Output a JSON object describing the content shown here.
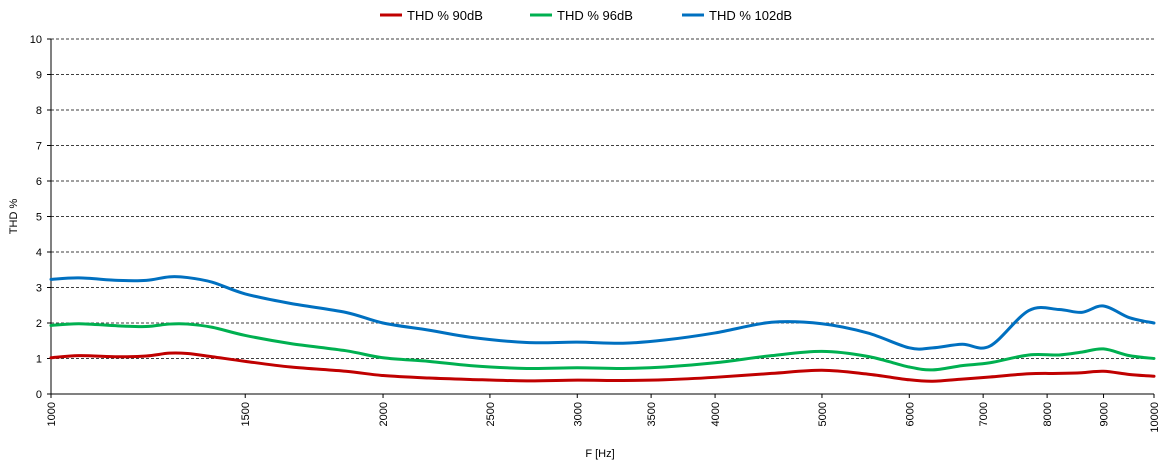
{
  "chart_data": {
    "type": "line",
    "title": "",
    "xlabel": "F [Hz]",
    "ylabel": "THD %",
    "x_scale": "log",
    "xlim": [
      1000,
      10000
    ],
    "ylim": [
      0,
      10
    ],
    "grid": true,
    "legend_position": "top",
    "x_ticks": [
      1000,
      1500,
      2000,
      2500,
      3000,
      3500,
      4000,
      5000,
      6000,
      7000,
      8000,
      9000,
      10000
    ],
    "x_tick_labels": [
      "1000",
      "1500",
      "2000",
      "2500",
      "3000",
      "3500",
      "4000",
      "5000",
      "6000",
      "7000",
      "8000",
      "9000",
      "10000"
    ],
    "y_ticks": [
      0,
      1,
      2,
      3,
      4,
      5,
      6,
      7,
      8,
      9,
      10
    ],
    "y_tick_labels": [
      "0",
      "1",
      "2",
      "3",
      "4",
      "5",
      "6",
      "7",
      "8",
      "9",
      "10"
    ],
    "series": [
      {
        "name": "THD % 90dB",
        "color": "#c00000",
        "points": [
          [
            1000,
            1.02
          ],
          [
            1060,
            1.08
          ],
          [
            1150,
            1.05
          ],
          [
            1220,
            1.07
          ],
          [
            1280,
            1.15
          ],
          [
            1330,
            1.14
          ],
          [
            1400,
            1.05
          ],
          [
            1500,
            0.92
          ],
          [
            1650,
            0.76
          ],
          [
            1850,
            0.64
          ],
          [
            2000,
            0.52
          ],
          [
            2200,
            0.45
          ],
          [
            2400,
            0.41
          ],
          [
            2700,
            0.37
          ],
          [
            3000,
            0.39
          ],
          [
            3300,
            0.38
          ],
          [
            3600,
            0.4
          ],
          [
            4000,
            0.47
          ],
          [
            4500,
            0.58
          ],
          [
            5000,
            0.67
          ],
          [
            5500,
            0.56
          ],
          [
            6000,
            0.4
          ],
          [
            6300,
            0.36
          ],
          [
            6700,
            0.42
          ],
          [
            7100,
            0.48
          ],
          [
            7700,
            0.57
          ],
          [
            8200,
            0.58
          ],
          [
            8600,
            0.6
          ],
          [
            9000,
            0.64
          ],
          [
            9500,
            0.55
          ],
          [
            10000,
            0.5
          ]
        ]
      },
      {
        "name": "THD % 96dB",
        "color": "#00b050",
        "points": [
          [
            1000,
            1.93
          ],
          [
            1060,
            1.98
          ],
          [
            1150,
            1.92
          ],
          [
            1220,
            1.9
          ],
          [
            1280,
            1.97
          ],
          [
            1330,
            1.97
          ],
          [
            1400,
            1.88
          ],
          [
            1500,
            1.65
          ],
          [
            1650,
            1.42
          ],
          [
            1850,
            1.22
          ],
          [
            2000,
            1.02
          ],
          [
            2200,
            0.92
          ],
          [
            2400,
            0.8
          ],
          [
            2700,
            0.72
          ],
          [
            3000,
            0.74
          ],
          [
            3300,
            0.72
          ],
          [
            3600,
            0.76
          ],
          [
            4000,
            0.88
          ],
          [
            4500,
            1.08
          ],
          [
            5000,
            1.2
          ],
          [
            5500,
            1.06
          ],
          [
            6000,
            0.76
          ],
          [
            6300,
            0.68
          ],
          [
            6700,
            0.8
          ],
          [
            7100,
            0.88
          ],
          [
            7700,
            1.1
          ],
          [
            8200,
            1.1
          ],
          [
            8600,
            1.18
          ],
          [
            9000,
            1.27
          ],
          [
            9500,
            1.08
          ],
          [
            10000,
            1.0
          ]
        ]
      },
      {
        "name": "THD % 102dB",
        "color": "#0070c0",
        "points": [
          [
            1000,
            3.23
          ],
          [
            1060,
            3.27
          ],
          [
            1150,
            3.2
          ],
          [
            1220,
            3.2
          ],
          [
            1280,
            3.3
          ],
          [
            1330,
            3.28
          ],
          [
            1400,
            3.15
          ],
          [
            1500,
            2.82
          ],
          [
            1650,
            2.55
          ],
          [
            1850,
            2.3
          ],
          [
            2000,
            2.0
          ],
          [
            2200,
            1.8
          ],
          [
            2400,
            1.6
          ],
          [
            2700,
            1.45
          ],
          [
            3000,
            1.46
          ],
          [
            3300,
            1.43
          ],
          [
            3600,
            1.52
          ],
          [
            4000,
            1.72
          ],
          [
            4500,
            2.02
          ],
          [
            5000,
            1.98
          ],
          [
            5500,
            1.72
          ],
          [
            6000,
            1.3
          ],
          [
            6300,
            1.3
          ],
          [
            6700,
            1.4
          ],
          [
            7100,
            1.35
          ],
          [
            7700,
            2.35
          ],
          [
            8200,
            2.38
          ],
          [
            8600,
            2.3
          ],
          [
            9000,
            2.48
          ],
          [
            9500,
            2.15
          ],
          [
            10000,
            2.0
          ]
        ]
      }
    ]
  }
}
